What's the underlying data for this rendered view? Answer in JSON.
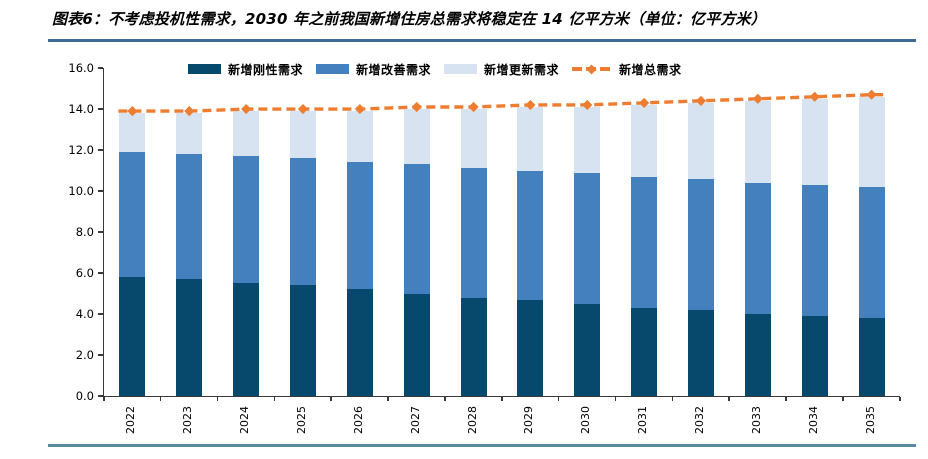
{
  "title": "图表6：不考虑投机性需求，2030 年之前我国新增住房总需求将稳定在 14 亿平方米（单位：亿平方米）",
  "colors": {
    "title_divider": "#3e6b95",
    "bottom_divider": "#5b8aa0",
    "axis": "#3a3a3a",
    "background": "#ffffff"
  },
  "chart_data": {
    "type": "bar",
    "stacked": true,
    "title": "不考虑投机性需求，2030 年之前我国新增住房总需求将稳定在 14 亿平方米",
    "unit": "亿平方米",
    "xlabel": "",
    "ylabel": "",
    "ylim": [
      0,
      16
    ],
    "ytick_step": 2,
    "ytick_labels": [
      "0.0",
      "2.0",
      "4.0",
      "6.0",
      "8.0",
      "10.0",
      "12.0",
      "14.0",
      "16.0"
    ],
    "grid": false,
    "legend_position": "top-center",
    "categories": [
      "2022",
      "2023",
      "2024",
      "2025",
      "2026",
      "2027",
      "2028",
      "2029",
      "2030",
      "2031",
      "2032",
      "2033",
      "2034",
      "2035"
    ],
    "series": [
      {
        "name": "新增刚性需求",
        "type": "bar",
        "color": "#06496d",
        "values": [
          5.8,
          5.7,
          5.5,
          5.4,
          5.2,
          5.0,
          4.8,
          4.7,
          4.5,
          4.3,
          4.2,
          4.0,
          3.9,
          3.8
        ]
      },
      {
        "name": "新增改善需求",
        "type": "bar",
        "color": "#4480bd",
        "values": [
          6.1,
          6.1,
          6.2,
          6.2,
          6.2,
          6.3,
          6.3,
          6.3,
          6.4,
          6.4,
          6.4,
          6.4,
          6.4,
          6.4
        ]
      },
      {
        "name": "新增更新需求",
        "type": "bar",
        "color": "#d7e3f1",
        "values": [
          1.9,
          2.0,
          2.2,
          2.3,
          2.5,
          2.7,
          2.9,
          3.1,
          3.2,
          3.5,
          3.7,
          4.0,
          4.2,
          4.4
        ]
      },
      {
        "name": "新增总需求",
        "type": "line",
        "style": "dashed",
        "marker": "diamond",
        "color": "#ed7d31",
        "values": [
          13.8,
          13.8,
          13.9,
          13.9,
          13.9,
          14.0,
          14.0,
          14.1,
          14.1,
          14.2,
          14.3,
          14.4,
          14.5,
          14.6
        ]
      }
    ]
  }
}
